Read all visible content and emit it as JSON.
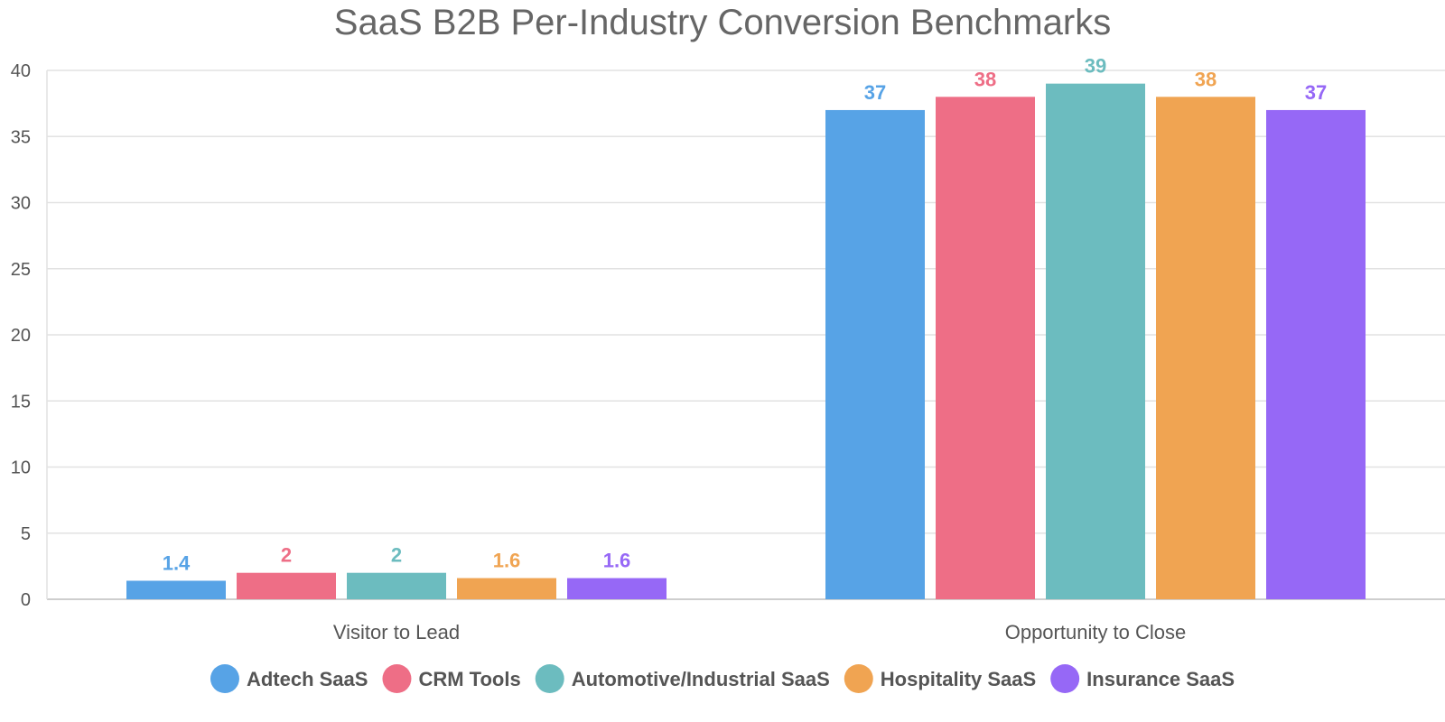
{
  "chart_data": {
    "type": "bar",
    "title": "SaaS B2B Per-Industry Conversion Benchmarks",
    "xlabel": "",
    "ylabel": "",
    "categories": [
      "Visitor to Lead",
      "Opportunity to Close"
    ],
    "ylim": [
      0,
      40
    ],
    "yticks": [
      0,
      5,
      10,
      15,
      20,
      25,
      30,
      35,
      40
    ],
    "grid": true,
    "legend_position": "bottom",
    "series": [
      {
        "name": "Adtech SaaS",
        "color": "#57a3e6",
        "values": [
          1.4,
          37
        ]
      },
      {
        "name": "CRM Tools",
        "color": "#ee6e86",
        "values": [
          2,
          38
        ]
      },
      {
        "name": "Automotive/Industrial SaaS",
        "color": "#6cbcbf",
        "values": [
          2,
          39
        ]
      },
      {
        "name": "Hospitality SaaS",
        "color": "#f0a452",
        "values": [
          1.6,
          38
        ]
      },
      {
        "name": "Insurance SaaS",
        "color": "#9668f6",
        "values": [
          1.6,
          37
        ]
      }
    ]
  }
}
